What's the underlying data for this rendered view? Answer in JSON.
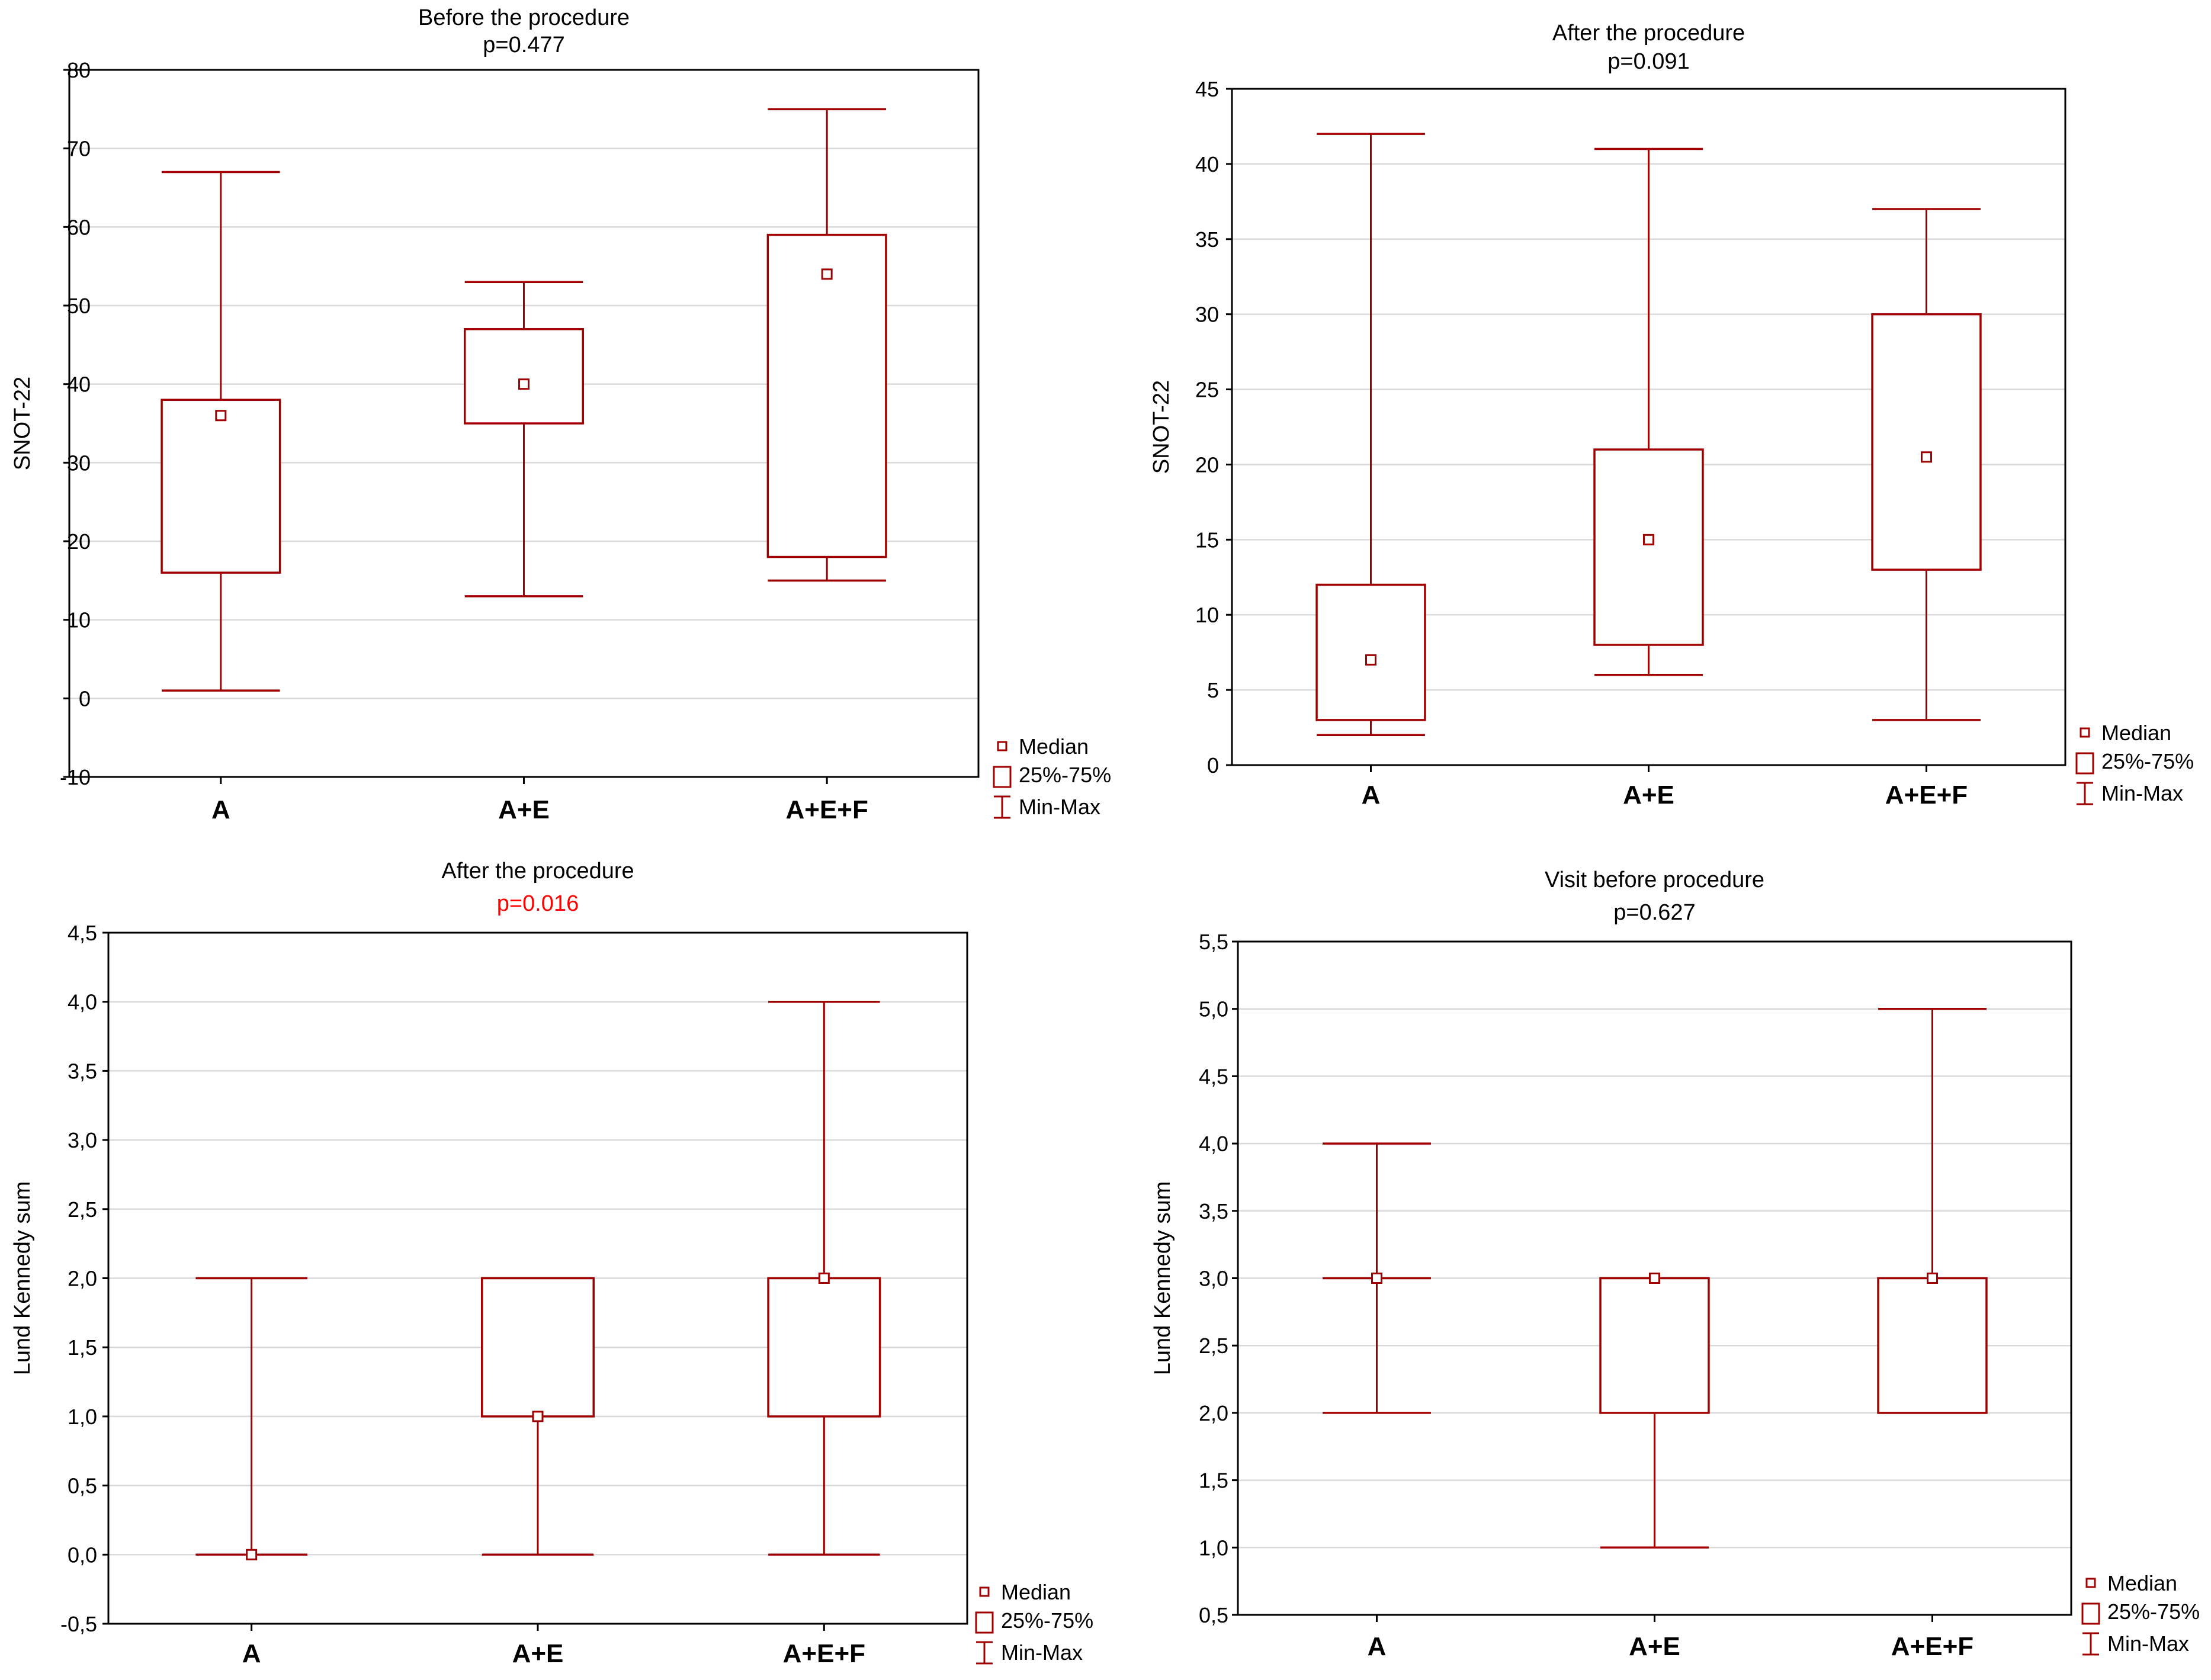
{
  "chart_data": [
    {
      "type": "boxplot",
      "title": "Before the procedure",
      "subtitle": "p=0.477",
      "subtitle_color": "#000000",
      "ylabel": "SNOT-22",
      "ylim": [
        -10,
        80
      ],
      "yticks": [
        -10,
        0,
        10,
        20,
        30,
        40,
        50,
        60,
        70,
        80
      ],
      "ytick_labels": [
        "-10",
        "0",
        "10",
        "20",
        "30",
        "40",
        "50",
        "60",
        "70",
        "80"
      ],
      "categories": [
        "A",
        "A+E",
        "A+E+F"
      ],
      "boxes": [
        {
          "min": 1,
          "q1": 16,
          "median": 36,
          "q3": 38,
          "max": 67
        },
        {
          "min": 13,
          "q1": 35,
          "median": 40,
          "q3": 47,
          "max": 53
        },
        {
          "min": 15,
          "q1": 18,
          "median": 54,
          "q3": 59,
          "max": 75
        }
      ],
      "legend": {
        "median": "Median",
        "box": "25%-75%",
        "whisker": "Min-Max"
      },
      "grid": true
    },
    {
      "type": "boxplot",
      "title": "After the procedure",
      "subtitle": "p=0.091",
      "subtitle_color": "#000000",
      "ylabel": "SNOT-22",
      "ylim": [
        0,
        45
      ],
      "yticks": [
        0,
        5,
        10,
        15,
        20,
        25,
        30,
        35,
        40,
        45
      ],
      "ytick_labels": [
        "0",
        "5",
        "10",
        "15",
        "20",
        "25",
        "30",
        "35",
        "40",
        "45"
      ],
      "categories": [
        "A",
        "A+E",
        "A+E+F"
      ],
      "boxes": [
        {
          "min": 2,
          "q1": 3,
          "median": 7,
          "q3": 12,
          "max": 42
        },
        {
          "min": 6,
          "q1": 8,
          "median": 15,
          "q3": 21,
          "max": 41
        },
        {
          "min": 3,
          "q1": 13,
          "median": 20.5,
          "q3": 30,
          "max": 37
        }
      ],
      "legend": {
        "median": "Median",
        "box": "25%-75%",
        "whisker": "Min-Max"
      },
      "grid": true
    },
    {
      "type": "boxplot",
      "title": "After the procedure",
      "subtitle": "p=0.016",
      "subtitle_color": "#ff0000",
      "ylabel": "Lund Kennedy sum",
      "ylim": [
        -0.5,
        4.5
      ],
      "yticks": [
        -0.5,
        0,
        0.5,
        1,
        1.5,
        2,
        2.5,
        3,
        3.5,
        4,
        4.5
      ],
      "ytick_labels": [
        "-0,5",
        "0,0",
        "0,5",
        "1,0",
        "1,5",
        "2,0",
        "2,5",
        "3,0",
        "3,5",
        "4,0",
        "4,5"
      ],
      "categories": [
        "A",
        "A+E",
        "A+E+F"
      ],
      "boxes": [
        {
          "min": 0,
          "q1": 0,
          "median": 0,
          "q3": 0,
          "max": 2
        },
        {
          "min": 0,
          "q1": 1,
          "median": 1,
          "q3": 2,
          "max": 2
        },
        {
          "min": 0,
          "q1": 1,
          "median": 2,
          "q3": 2,
          "max": 4
        }
      ],
      "legend": {
        "median": "Median",
        "box": "25%-75%",
        "whisker": "Min-Max"
      },
      "grid": true
    },
    {
      "type": "boxplot",
      "title": "Visit before procedure",
      "subtitle": "p=0.627",
      "subtitle_color": "#000000",
      "ylabel": "Lund Kennedy sum",
      "ylim": [
        0.5,
        5.5
      ],
      "yticks": [
        0.5,
        1,
        1.5,
        2,
        2.5,
        3,
        3.5,
        4,
        4.5,
        5,
        5.5
      ],
      "ytick_labels": [
        "0,5",
        "1,0",
        "1,5",
        "2,0",
        "2,5",
        "3,0",
        "3,5",
        "4,0",
        "4,5",
        "5,0",
        "5,5"
      ],
      "categories": [
        "A",
        "A+E",
        "A+E+F"
      ],
      "boxes": [
        {
          "min": 2,
          "q1": 3,
          "median": 3,
          "q3": 3,
          "max": 4
        },
        {
          "min": 1,
          "q1": 2,
          "median": 3,
          "q3": 3,
          "max": 3
        },
        {
          "min": 2,
          "q1": 2,
          "median": 3,
          "q3": 3,
          "max": 5
        }
      ],
      "legend": {
        "median": "Median",
        "box": "25%-75%",
        "whisker": "Min-Max"
      },
      "grid": true
    }
  ],
  "colors": {
    "series": "#a00000",
    "grid": "#d9d9d9",
    "axis": "#000000"
  }
}
